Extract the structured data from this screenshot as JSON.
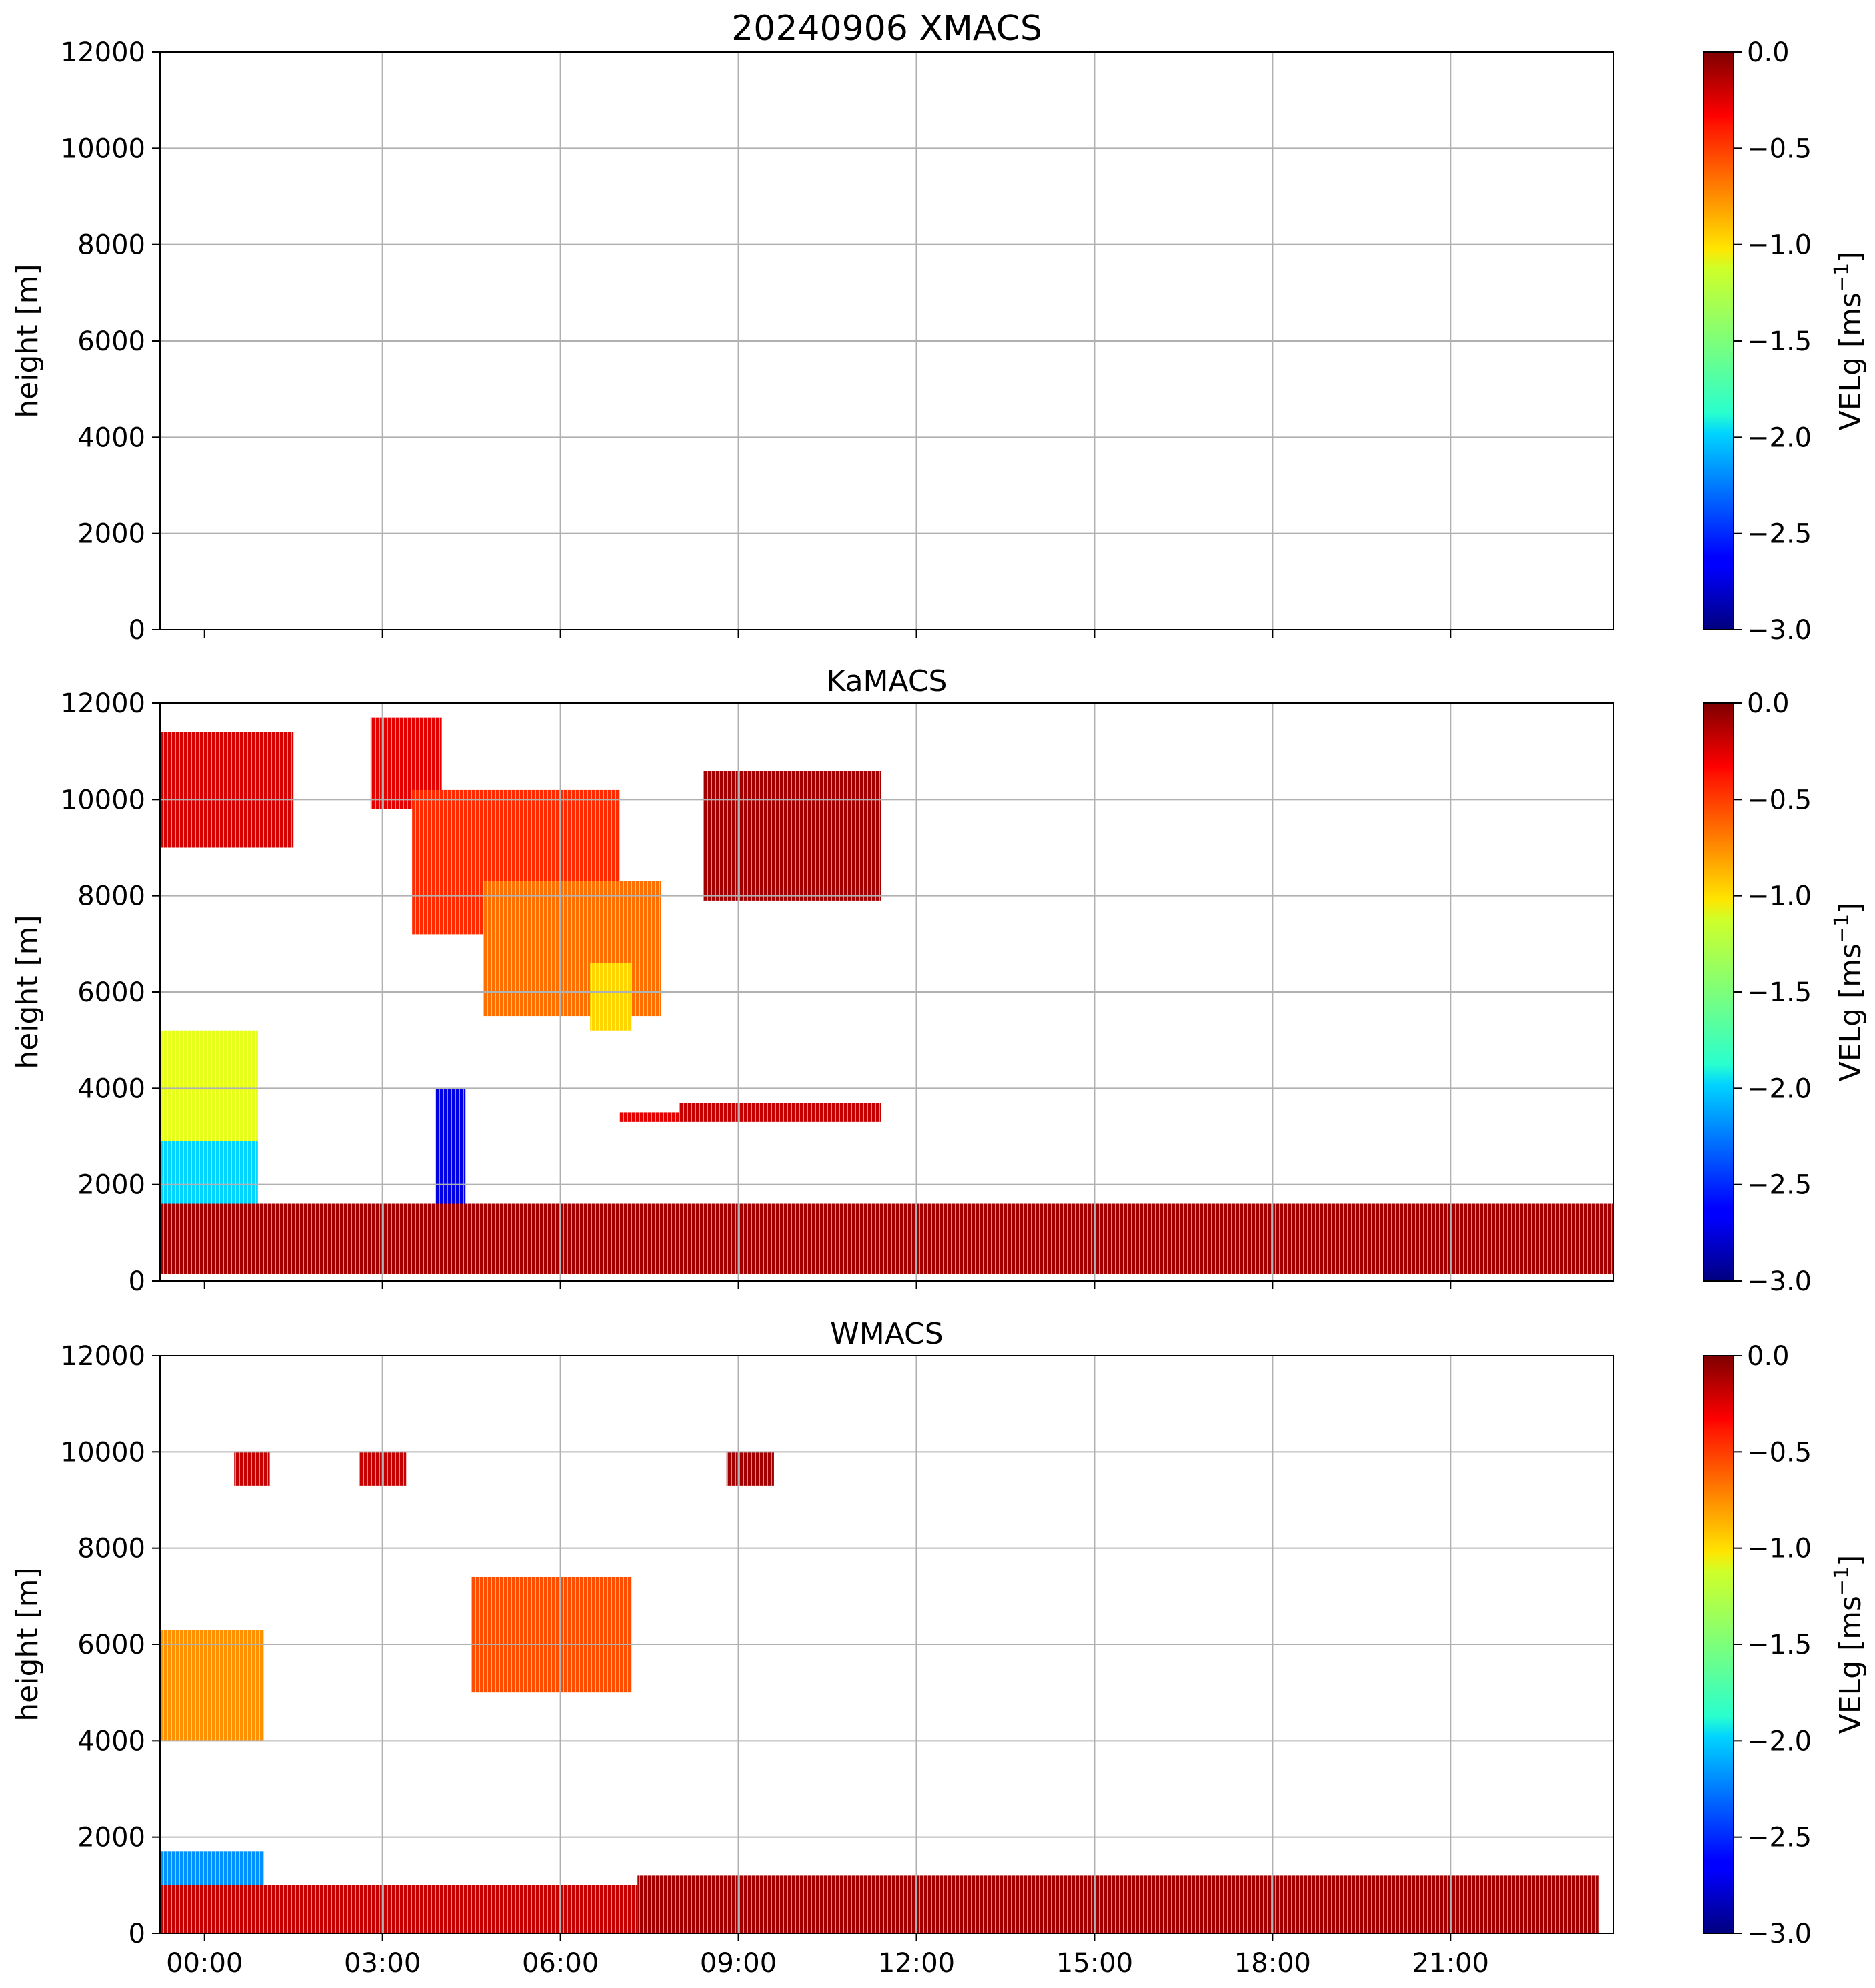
{
  "chart_data": [
    {
      "type": "heatmap",
      "title": "20240906 XMACS",
      "xlabel": "",
      "ylabel": "height [m]",
      "ylim": [
        0,
        12000
      ],
      "yticks": [
        "0",
        "2000",
        "4000",
        "6000",
        "8000",
        "10000",
        "12000"
      ],
      "xlim": [
        "23:15",
        "23:45"
      ],
      "xticks": [],
      "grid": true,
      "colorbar": {
        "label": "VELg [ms",
        "label_sup": "−1",
        "label_end": "]",
        "range": [
          -3.0,
          0.0
        ],
        "ticks": [
          "0.0",
          "−0.5",
          "−1.0",
          "−1.5",
          "−2.0",
          "−2.5",
          "−3.0"
        ],
        "colormap": "jet"
      },
      "data_blobs": []
    },
    {
      "type": "heatmap",
      "title": "KaMACS",
      "xlabel": "",
      "ylabel": "height [m]",
      "ylim": [
        0,
        12000
      ],
      "yticks": [
        "0",
        "2000",
        "4000",
        "6000",
        "8000",
        "10000",
        "12000"
      ],
      "xlim": [
        "23:15",
        "23:45"
      ],
      "xticks": [],
      "grid": true,
      "colorbar": {
        "label": "VELg [ms",
        "label_sup": "−1",
        "label_end": "]",
        "range": [
          -3.0,
          0.0
        ],
        "ticks": [
          "0.0",
          "−0.5",
          "−1.0",
          "−1.5",
          "−2.0",
          "−2.5",
          "−3.0"
        ],
        "colormap": "jet"
      },
      "data_blobs": [
        {
          "t0": -0.75,
          "t1": 1.5,
          "h0": 9000,
          "h1": 11400,
          "vel": -0.25
        },
        {
          "t0": 2.8,
          "t1": 4.0,
          "h0": 9800,
          "h1": 11700,
          "vel": -0.3
        },
        {
          "t0": 3.5,
          "t1": 7.0,
          "h0": 7200,
          "h1": 10200,
          "vel": -0.5
        },
        {
          "t0": 4.7,
          "t1": 7.7,
          "h0": 5500,
          "h1": 8300,
          "vel": -0.7
        },
        {
          "t0": 6.5,
          "t1": 7.2,
          "h0": 5200,
          "h1": 6600,
          "vel": -1.0
        },
        {
          "t0": 8.4,
          "t1": 11.4,
          "h0": 7900,
          "h1": 10600,
          "vel": -0.1
        },
        {
          "t0": -0.75,
          "t1": 0.9,
          "h0": 2900,
          "h1": 5200,
          "vel": -1.2
        },
        {
          "t0": -0.75,
          "t1": 0.9,
          "h0": 700,
          "h1": 2900,
          "vel": -2.0
        },
        {
          "t0": 3.9,
          "t1": 4.4,
          "h0": 200,
          "h1": 4000,
          "vel": -2.7
        },
        {
          "t0": 7.0,
          "t1": 8.0,
          "h0": 3300,
          "h1": 3500,
          "vel": -0.3
        },
        {
          "t0": 8.0,
          "t1": 11.4,
          "h0": 3300,
          "h1": 3700,
          "vel": -0.2
        },
        {
          "t0": -0.75,
          "t1": 24.0,
          "h0": 150,
          "h1": 1600,
          "vel": -0.1
        }
      ]
    },
    {
      "type": "heatmap",
      "title": "WMACS",
      "xlabel": "",
      "ylabel": "height [m]",
      "ylim": [
        0,
        12000
      ],
      "yticks": [
        "0",
        "2000",
        "4000",
        "6000",
        "8000",
        "10000",
        "12000"
      ],
      "xlim": [
        "23:15",
        "23:45"
      ],
      "xticks": [
        "00:00",
        "03:00",
        "06:00",
        "09:00",
        "12:00",
        "15:00",
        "18:00",
        "21:00"
      ],
      "grid": true,
      "colorbar": {
        "label": "VELg [ms",
        "label_sup": "−1",
        "label_end": "]",
        "range": [
          -3.0,
          0.0
        ],
        "ticks": [
          "0.0",
          "−0.5",
          "−1.0",
          "−1.5",
          "−2.0",
          "−2.5",
          "−3.0"
        ],
        "colormap": "jet"
      },
      "data_blobs": [
        {
          "t0": 0.5,
          "t1": 1.1,
          "h0": 9300,
          "h1": 10000,
          "vel": -0.2
        },
        {
          "t0": 2.6,
          "t1": 3.4,
          "h0": 9300,
          "h1": 10000,
          "vel": -0.2
        },
        {
          "t0": 8.8,
          "t1": 9.6,
          "h0": 9300,
          "h1": 10000,
          "vel": -0.1
        },
        {
          "t0": -0.75,
          "t1": 1.0,
          "h0": 4000,
          "h1": 6300,
          "vel": -0.8
        },
        {
          "t0": 4.5,
          "t1": 7.2,
          "h0": 5000,
          "h1": 7400,
          "vel": -0.6
        },
        {
          "t0": -0.75,
          "t1": 1.0,
          "h0": 500,
          "h1": 1700,
          "vel": -2.2
        },
        {
          "t0": -0.75,
          "t1": 7.3,
          "h0": 0,
          "h1": 1000,
          "vel": -0.2
        },
        {
          "t0": 7.3,
          "t1": 23.5,
          "h0": 0,
          "h1": 1200,
          "vel": -0.1
        }
      ]
    }
  ]
}
